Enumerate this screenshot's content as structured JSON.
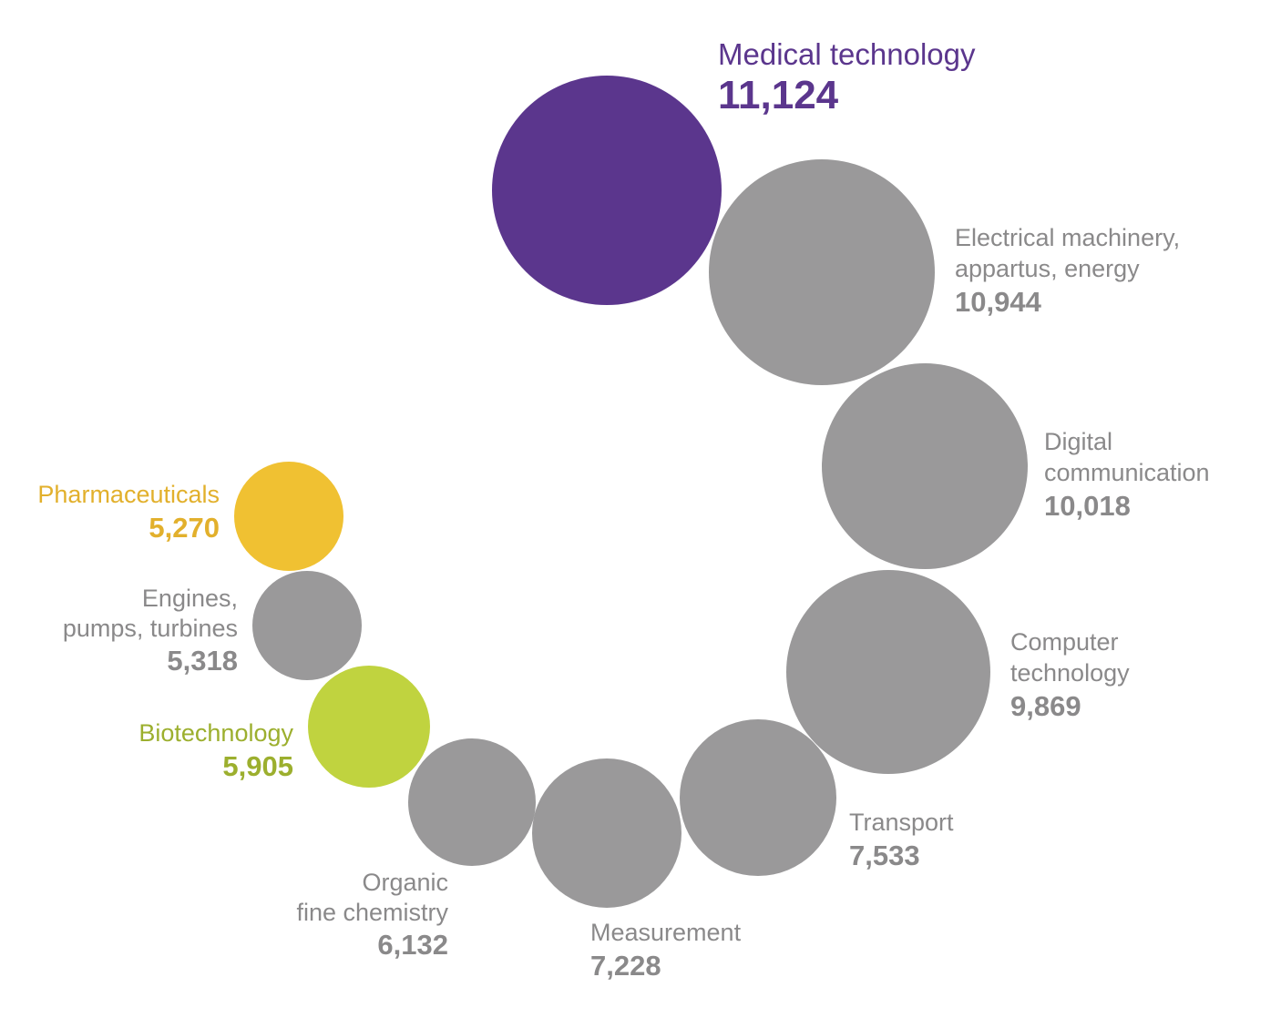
{
  "chart_data": {
    "type": "bubble",
    "title": "",
    "colors": {
      "highlight": "#5b368d",
      "default": "#9a999a",
      "pharma": "#f0c132",
      "biotech": "#c0d33f",
      "pharma_text": "#e2b02c",
      "biotech_text": "#9caf2e",
      "default_text": "#8a898a"
    },
    "series": [
      {
        "name": "Medical technology",
        "lines": [
          "Medical technology"
        ],
        "value_label": "11,124",
        "value": 11124,
        "color_key": "highlight",
        "text_key": "highlight"
      },
      {
        "name": "Electrical machinery, appartus, energy",
        "lines": [
          "Electrical machinery,",
          "appartus, energy"
        ],
        "value_label": "10,944",
        "value": 10944,
        "color_key": "default",
        "text_key": "default_text"
      },
      {
        "name": "Digital communication",
        "lines": [
          "Digital",
          "communication"
        ],
        "value_label": "10,018",
        "value": 10018,
        "color_key": "default",
        "text_key": "default_text"
      },
      {
        "name": "Computer technology",
        "lines": [
          "Computer",
          "technology"
        ],
        "value_label": "9,869",
        "value": 9869,
        "color_key": "default",
        "text_key": "default_text"
      },
      {
        "name": "Transport",
        "lines": [
          "Transport"
        ],
        "value_label": "7,533",
        "value": 7533,
        "color_key": "default",
        "text_key": "default_text"
      },
      {
        "name": "Measurement",
        "lines": [
          "Measurement"
        ],
        "value_label": "7,228",
        "value": 7228,
        "color_key": "default",
        "text_key": "default_text"
      },
      {
        "name": "Organic fine chemistry",
        "lines": [
          "Organic",
          "fine chemistry"
        ],
        "value_label": "6,132",
        "value": 6132,
        "color_key": "default",
        "text_key": "default_text"
      },
      {
        "name": "Biotechnology",
        "lines": [
          "Biotechnology"
        ],
        "value_label": "5,905",
        "value": 5905,
        "color_key": "biotech",
        "text_key": "biotech_text"
      },
      {
        "name": "Engines, pumps, turbines",
        "lines": [
          "Engines,",
          "pumps, turbines"
        ],
        "value_label": "5,318",
        "value": 5318,
        "color_key": "default",
        "text_key": "default_text"
      },
      {
        "name": "Pharmaceuticals",
        "lines": [
          "Pharmaceuticals"
        ],
        "value_label": "5,270",
        "value": 5270,
        "color_key": "pharma",
        "text_key": "pharma_text"
      }
    ]
  }
}
